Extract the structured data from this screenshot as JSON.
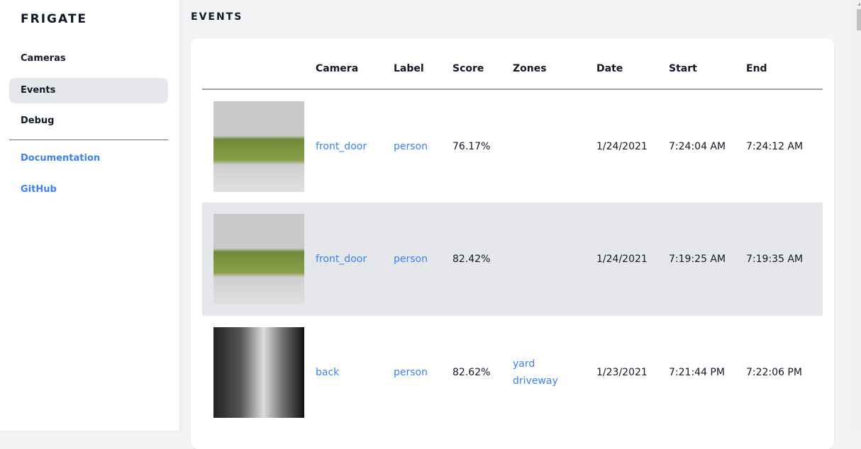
{
  "app": {
    "title": "FRIGATE"
  },
  "sidebar": {
    "items": [
      {
        "label": "Cameras"
      },
      {
        "label": "Events"
      },
      {
        "label": "Debug"
      }
    ],
    "links": [
      {
        "label": "Documentation"
      },
      {
        "label": "GitHub"
      }
    ]
  },
  "page": {
    "title": "EVENTS"
  },
  "table": {
    "headers": [
      "",
      "Camera",
      "Label",
      "Score",
      "Zones",
      "Date",
      "Start",
      "End"
    ],
    "rows": [
      {
        "camera": "front_door",
        "label": "person",
        "score": "76.17%",
        "zones": [],
        "date": "1/24/2021",
        "start": "7:24:04 AM",
        "end": "7:24:12 AM",
        "thumb": "color"
      },
      {
        "camera": "front_door",
        "label": "person",
        "score": "82.42%",
        "zones": [],
        "date": "1/24/2021",
        "start": "7:19:25 AM",
        "end": "7:19:35 AM",
        "thumb": "color"
      },
      {
        "camera": "back",
        "label": "person",
        "score": "82.62%",
        "zones": [
          "yard",
          "driveway"
        ],
        "date": "1/23/2021",
        "start": "7:21:44 PM",
        "end": "7:22:06 PM",
        "thumb": "night"
      }
    ]
  },
  "colors": {
    "accent": "#3b82f6",
    "active_bg": "#e5e7eb"
  }
}
